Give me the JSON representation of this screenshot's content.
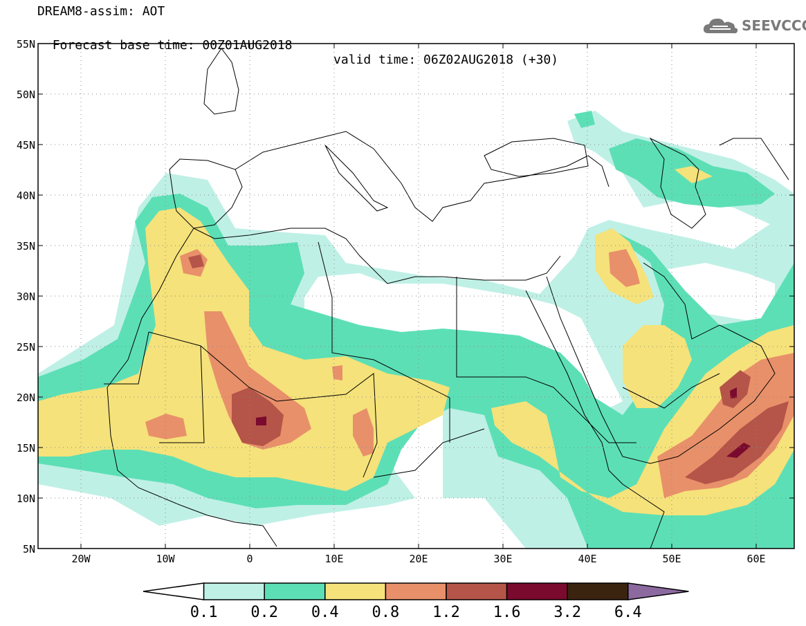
{
  "header": {
    "title_line1": "DREAM8-assim: AOT",
    "title_line2_base": "Forecast base time: 00Z01AUG2018",
    "title_line2_valid": "valid time: 06Z02AUG2018 (+30)"
  },
  "logo": {
    "text": "SEEVCCC",
    "icon": "cloud-logo-icon"
  },
  "map": {
    "lat_ticks": [
      "55N",
      "50N",
      "45N",
      "40N",
      "35N",
      "30N",
      "25N",
      "20N",
      "15N",
      "10N",
      "5N"
    ],
    "lon_ticks": [
      "20W",
      "10W",
      "0",
      "10E",
      "20E",
      "30E",
      "40E",
      "50E",
      "60E"
    ]
  },
  "colorbar": {
    "labels": [
      "0.1",
      "0.2",
      "0.4",
      "0.8",
      "1.2",
      "1.6",
      "3.2",
      "6.4"
    ],
    "colors": [
      "#ffffff",
      "#bff0e6",
      "#5ddfb6",
      "#f5e27a",
      "#e8906a",
      "#b55448",
      "#7a0a2e",
      "#3a2410",
      "#8c6aa0"
    ]
  },
  "colors": {
    "level1": "#bff0e6",
    "level2": "#5ddfb6",
    "level3": "#f5e27a",
    "level4": "#e8906a",
    "level5": "#b55448",
    "level6": "#7a0a2e"
  }
}
